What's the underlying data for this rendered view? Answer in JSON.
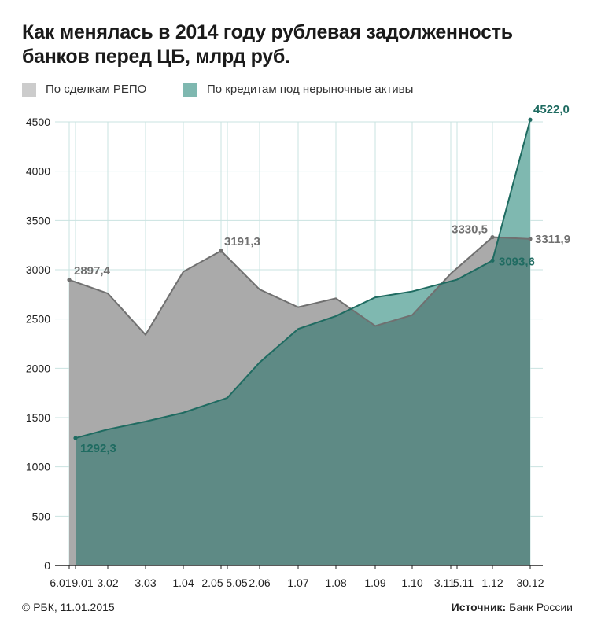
{
  "title": "Как менялась в 2014 году рублевая задолженность банков перед ЦБ, млрд руб.",
  "legend": [
    {
      "label": "По сделкам РЕПО",
      "color": "#cccccc"
    },
    {
      "label": "По кредитам под нерыночные активы",
      "color": "#7fb8b0"
    }
  ],
  "footer": {
    "copyright": "© РБК, 11.01.2015",
    "source_label": "Источник:",
    "source_value": "Банк России"
  },
  "colors": {
    "repo_fill": "#aaaaaa",
    "repo_line": "#707070",
    "credit_fill": "#7fb8b0",
    "credit_line": "#1f6b61",
    "overlap_fill": "#5e8a85",
    "grid": "#c9e3e1",
    "axis": "#222222"
  },
  "chart_data": {
    "type": "area",
    "xlabel": "",
    "ylabel": "",
    "ylim": [
      0,
      4500
    ],
    "yticks": [
      0,
      500,
      1000,
      1500,
      2000,
      2500,
      3000,
      3500,
      4000,
      4500
    ],
    "x_labels": [
      "6.01",
      "9.01",
      "3.02",
      "3.03",
      "1.04",
      "2.05",
      "5.05",
      "2.06",
      "1.07",
      "1.08",
      "1.09",
      "1.10",
      "3.11",
      "5.11",
      "1.12",
      "30.12"
    ],
    "series": [
      {
        "name": "По сделкам РЕПО",
        "points": [
          {
            "x": "6.01",
            "y": 2897.4
          },
          {
            "x": "3.02",
            "y": 2760
          },
          {
            "x": "3.03",
            "y": 2340
          },
          {
            "x": "1.04",
            "y": 2980
          },
          {
            "x": "2.05",
            "y": 3191.3
          },
          {
            "x": "2.06",
            "y": 2800
          },
          {
            "x": "1.07",
            "y": 2620
          },
          {
            "x": "1.08",
            "y": 2710
          },
          {
            "x": "1.09",
            "y": 2430
          },
          {
            "x": "1.10",
            "y": 2540
          },
          {
            "x": "3.11",
            "y": 2960
          },
          {
            "x": "1.12",
            "y": 3330.5
          },
          {
            "x": "30.12",
            "y": 3311.9
          }
        ]
      },
      {
        "name": "По кредитам под нерыночные активы",
        "points": [
          {
            "x": "9.01",
            "y": 1292.3
          },
          {
            "x": "3.02",
            "y": 1380
          },
          {
            "x": "3.03",
            "y": 1460
          },
          {
            "x": "1.04",
            "y": 1550
          },
          {
            "x": "5.05",
            "y": 1700
          },
          {
            "x": "2.06",
            "y": 2060
          },
          {
            "x": "1.07",
            "y": 2400
          },
          {
            "x": "1.08",
            "y": 2530
          },
          {
            "x": "1.09",
            "y": 2720
          },
          {
            "x": "1.10",
            "y": 2780
          },
          {
            "x": "5.11",
            "y": 2900
          },
          {
            "x": "1.12",
            "y": 3093.6
          },
          {
            "x": "30.12",
            "y": 4522.0
          }
        ]
      }
    ],
    "data_labels": [
      {
        "series": 0,
        "x": "6.01",
        "text": "2897,4"
      },
      {
        "series": 0,
        "x": "2.05",
        "text": "3191,3"
      },
      {
        "series": 0,
        "x": "1.12",
        "text": "3330,5"
      },
      {
        "series": 0,
        "x": "30.12",
        "text": "3311,9"
      },
      {
        "series": 1,
        "x": "9.01",
        "text": "1292,3"
      },
      {
        "series": 1,
        "x": "1.12",
        "text": "3093,6"
      },
      {
        "series": 1,
        "x": "30.12",
        "text": "4522,0"
      }
    ]
  }
}
